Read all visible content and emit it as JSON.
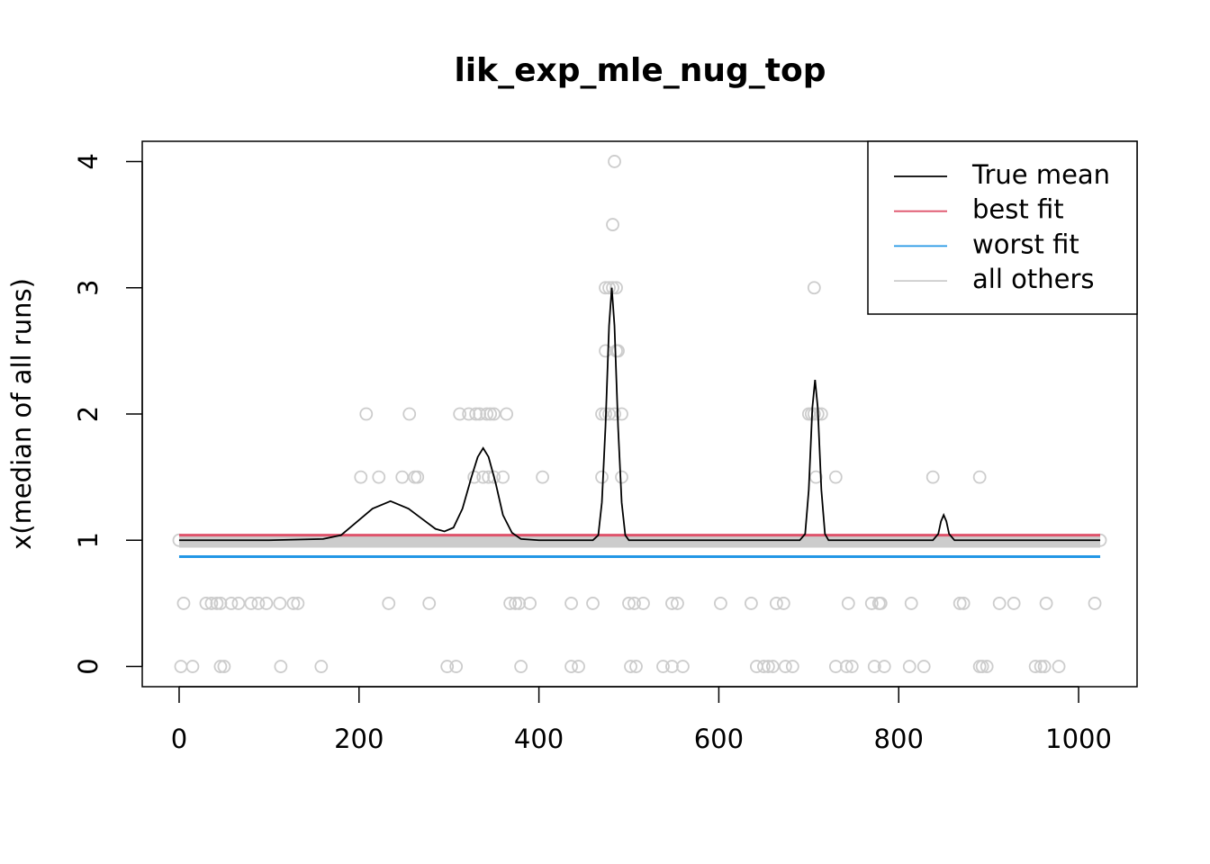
{
  "chart_data": {
    "type": "line",
    "title": "lik_exp_mle_nug_top",
    "ylabel": "x(median of all runs)",
    "xlim": [
      -41,
      1065
    ],
    "ylim": [
      -0.16,
      4.16
    ],
    "xticks": [
      0,
      200,
      400,
      600,
      800,
      1000
    ],
    "yticks": [
      0,
      1,
      2,
      3,
      4
    ],
    "legend": "topright",
    "series": [
      {
        "name": "True mean",
        "color": "#000000",
        "x": [
          0,
          100,
          160,
          180,
          200,
          215,
          235,
          255,
          270,
          285,
          295,
          305,
          315,
          325,
          332,
          338,
          344,
          352,
          360,
          370,
          380,
          400,
          460,
          466,
          470,
          474,
          478,
          481,
          484,
          488,
          492,
          496,
          500,
          690,
          696,
          700,
          704,
          707,
          710,
          714,
          718,
          722,
          838,
          844,
          847,
          850,
          853,
          856,
          862,
          1024
        ],
        "values": [
          1,
          1,
          1.01,
          1.04,
          1.16,
          1.25,
          1.31,
          1.25,
          1.17,
          1.09,
          1.07,
          1.1,
          1.25,
          1.5,
          1.66,
          1.73,
          1.66,
          1.45,
          1.2,
          1.06,
          1.01,
          1,
          1,
          1.04,
          1.3,
          1.9,
          2.7,
          3.0,
          2.7,
          1.9,
          1.3,
          1.04,
          1,
          1,
          1.05,
          1.4,
          2.05,
          2.27,
          2.05,
          1.4,
          1.05,
          1,
          1,
          1.05,
          1.15,
          1.2,
          1.15,
          1.05,
          1,
          1
        ]
      },
      {
        "name": "best fit",
        "color": "#DF536B",
        "x": [
          0,
          1024
        ],
        "values": [
          1.04,
          1.04
        ]
      },
      {
        "name": "worst fit",
        "color": "#2297E6",
        "x": [
          0,
          1024
        ],
        "values": [
          0.87,
          0.87
        ]
      },
      {
        "name": "all others",
        "color": "#CCCCCC",
        "x": [
          0,
          1024
        ],
        "levels": [
          0.95,
          0.96,
          0.97,
          0.98,
          0.99,
          1.0,
          1.01,
          1.02,
          1.03
        ]
      }
    ],
    "points": {
      "color": "#CCCCCC",
      "x": [
        2,
        15,
        46,
        50,
        113,
        158,
        298,
        308,
        380,
        436,
        444,
        502,
        508,
        538,
        548,
        560,
        642,
        650,
        655,
        660,
        674,
        682,
        730,
        742,
        748,
        773,
        784,
        812,
        828,
        890,
        893,
        898,
        952,
        958,
        962,
        978,
        5,
        30,
        36,
        42,
        46,
        58,
        66,
        80,
        88,
        97,
        112,
        127,
        132,
        233,
        278,
        368,
        374,
        378,
        390,
        436,
        460,
        500,
        506,
        516,
        548,
        554,
        602,
        636,
        664,
        672,
        744,
        770,
        778,
        780,
        814,
        868,
        872,
        912,
        928,
        964,
        1018,
        202,
        222,
        248,
        262,
        265,
        328,
        338,
        344,
        350,
        360,
        404,
        470,
        492,
        708,
        730,
        838,
        890,
        208,
        256,
        312,
        322,
        330,
        334,
        342,
        346,
        350,
        364,
        470,
        474,
        478,
        484,
        492,
        700,
        703,
        706,
        710,
        714,
        474,
        486,
        488,
        474,
        478,
        482,
        486,
        706,
        482,
        484,
        0,
        1024
      ],
      "values": [
        0,
        0,
        0,
        0,
        0,
        0,
        0,
        0,
        0,
        0,
        0,
        0,
        0,
        0,
        0,
        0,
        0,
        0,
        0,
        0,
        0,
        0,
        0,
        0,
        0,
        0,
        0,
        0,
        0,
        0,
        0,
        0,
        0,
        0,
        0,
        0,
        0.5,
        0.5,
        0.5,
        0.5,
        0.5,
        0.5,
        0.5,
        0.5,
        0.5,
        0.5,
        0.5,
        0.5,
        0.5,
        0.5,
        0.5,
        0.5,
        0.5,
        0.5,
        0.5,
        0.5,
        0.5,
        0.5,
        0.5,
        0.5,
        0.5,
        0.5,
        0.5,
        0.5,
        0.5,
        0.5,
        0.5,
        0.5,
        0.5,
        0.5,
        0.5,
        0.5,
        0.5,
        0.5,
        0.5,
        0.5,
        0.5,
        1.5,
        1.5,
        1.5,
        1.5,
        1.5,
        1.5,
        1.5,
        1.5,
        1.5,
        1.5,
        1.5,
        1.5,
        1.5,
        1.5,
        1.5,
        1.5,
        1.5,
        2,
        2,
        2,
        2,
        2,
        2,
        2,
        2,
        2,
        2,
        2,
        2,
        2,
        2,
        2,
        2,
        2,
        2,
        2,
        2,
        2.5,
        2.5,
        2.5,
        3,
        3,
        3,
        3,
        3,
        3.5,
        4,
        1,
        1
      ]
    }
  }
}
